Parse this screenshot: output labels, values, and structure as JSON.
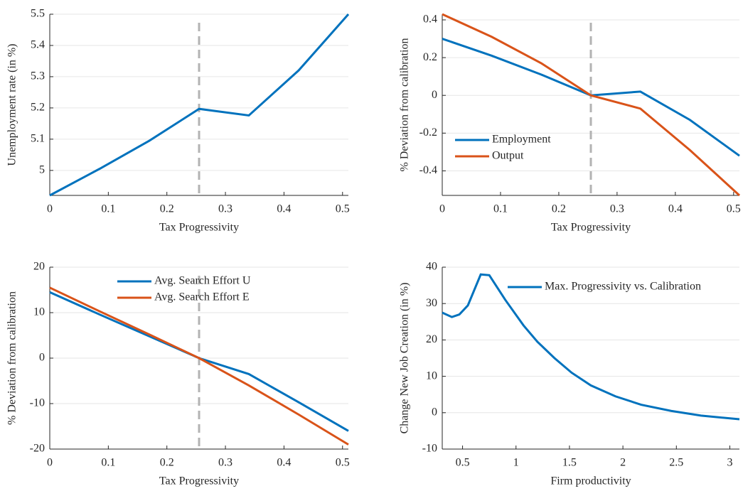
{
  "chart_data": [
    {
      "type": "line",
      "xlabel": "Tax Progressivity",
      "ylabel": "Unemployment rate (in %)",
      "x": [
        0,
        0.085,
        0.17,
        0.255,
        0.34,
        0.425,
        0.51
      ],
      "series": [
        {
          "color": "#0072bd",
          "values": [
            4.92,
            5.005,
            5.095,
            5.197,
            5.176,
            5.32,
            5.5
          ]
        }
      ],
      "xlim": [
        0,
        0.51
      ],
      "ylim": [
        4.92,
        5.5
      ],
      "xticks": [
        0,
        0.1,
        0.2,
        0.3,
        0.4,
        0.5
      ],
      "yticks": [
        5,
        5.1,
        5.2,
        5.3,
        5.4,
        5.5
      ],
      "grid": true,
      "vline": 0.255
    },
    {
      "type": "line",
      "xlabel": "Tax Progressivity",
      "ylabel": "% Deviation from calibration",
      "x": [
        0,
        0.085,
        0.17,
        0.255,
        0.34,
        0.425,
        0.51
      ],
      "series": [
        {
          "name": "Employment",
          "color": "#0072bd",
          "values": [
            0.3,
            0.21,
            0.11,
            0,
            0.02,
            -0.13,
            -0.32
          ]
        },
        {
          "name": "Output",
          "color": "#d95319",
          "values": [
            0.43,
            0.31,
            0.17,
            0,
            -0.07,
            -0.29,
            -0.53
          ]
        }
      ],
      "xlim": [
        0,
        0.51
      ],
      "ylim": [
        -0.53,
        0.43
      ],
      "xticks": [
        0,
        0.1,
        0.2,
        0.3,
        0.4,
        0.5
      ],
      "yticks": [
        -0.4,
        -0.2,
        0,
        0.2,
        0.4
      ],
      "grid": true,
      "vline": 0.255,
      "legend": "lower left"
    },
    {
      "type": "line",
      "xlabel": "Tax Progressivity",
      "ylabel": "% Deviation from calibration",
      "x": [
        0,
        0.085,
        0.17,
        0.255,
        0.34,
        0.425,
        0.51
      ],
      "series": [
        {
          "name": "Avg. Search Effort U",
          "color": "#0072bd",
          "values": [
            14.5,
            9.6,
            4.8,
            0,
            -3.5,
            -9.7,
            -16
          ]
        },
        {
          "name": "Avg. Search Effort E",
          "color": "#d95319",
          "values": [
            15.5,
            10.3,
            5.2,
            0,
            -6,
            -12.4,
            -19
          ]
        }
      ],
      "xlim": [
        0,
        0.51
      ],
      "ylim": [
        -20,
        20
      ],
      "xticks": [
        0,
        0.1,
        0.2,
        0.3,
        0.4,
        0.5
      ],
      "yticks": [
        -20,
        -10,
        0,
        10,
        20
      ],
      "grid": true,
      "vline": 0.255,
      "legend": "upper center"
    },
    {
      "type": "line",
      "xlabel": "Firm productivity",
      "ylabel": "Change New Job Creation (in %)",
      "x": [
        0.31,
        0.4,
        0.47,
        0.55,
        0.67,
        0.75,
        0.9,
        1.07,
        1.2,
        1.36,
        1.52,
        1.7,
        1.93,
        2.17,
        2.45,
        2.73,
        3.09
      ],
      "series": [
        {
          "name": "Max. Progressivity vs. Calibration",
          "color": "#0072bd",
          "values": [
            27.5,
            26.3,
            27,
            29.5,
            38,
            37.8,
            31,
            24,
            19.5,
            15,
            11,
            7.5,
            4.5,
            2.2,
            0.5,
            -0.8,
            -1.8
          ]
        }
      ],
      "xlim": [
        0.31,
        3.09
      ],
      "ylim": [
        -10,
        40
      ],
      "xticks": [
        0.5,
        1,
        1.5,
        2,
        2.5,
        3
      ],
      "yticks": [
        -10,
        0,
        10,
        20,
        30,
        40
      ],
      "grid": true,
      "legend": "upper right"
    }
  ]
}
